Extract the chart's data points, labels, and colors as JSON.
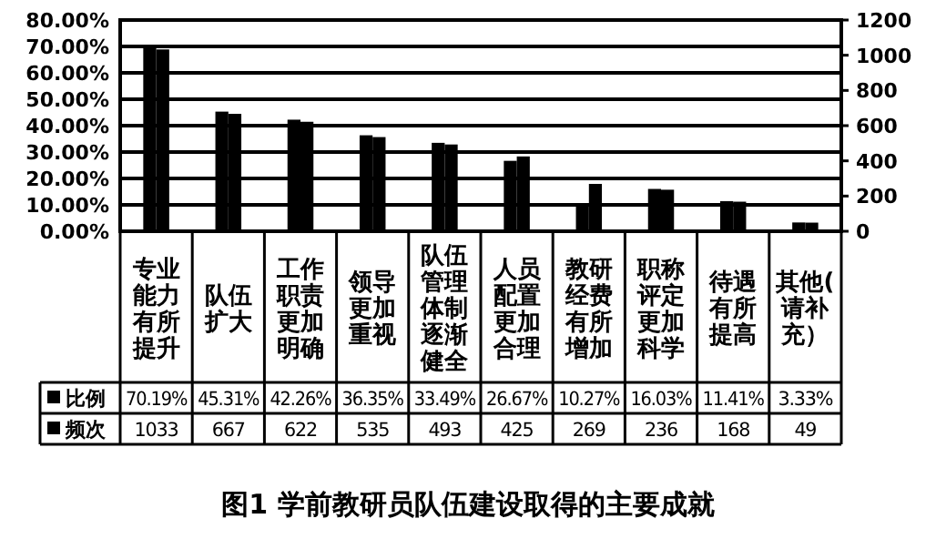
{
  "chart_data": {
    "type": "bar",
    "title": "图1 学前教研员队伍建设取得的主要成就",
    "categories": [
      "专业能力有所提升",
      "队伍扩大",
      "工作职责更加明确",
      "领导更加重视",
      "队伍管理体制逐渐健全",
      "人员配置更加合理",
      "教研经费有所增加",
      "职称评定更加科学",
      "待遇有所提高",
      "其他(请补充）"
    ],
    "series": [
      {
        "name": "比例",
        "color": "#000000",
        "axis": "y",
        "values": [
          70.19,
          45.31,
          42.26,
          36.35,
          33.49,
          26.67,
          10.27,
          16.03,
          11.41,
          3.33
        ],
        "value_labels": [
          "70.19%",
          "45.31%",
          "42.26%",
          "36.35%",
          "33.49%",
          "26.67%",
          "10.27%",
          "16.03%",
          "11.41%",
          "3.33%"
        ]
      },
      {
        "name": "频次",
        "color": "#000000",
        "axis": "y2",
        "values": [
          1033,
          667,
          622,
          535,
          493,
          425,
          269,
          236,
          168,
          49
        ],
        "value_labels": [
          "1033",
          "667",
          "622",
          "535",
          "493",
          "425",
          "269",
          "236",
          "168",
          "49"
        ]
      }
    ],
    "ylim": [
      0,
      80
    ],
    "yticks": [
      {
        "value": 0,
        "label": "0.00%"
      },
      {
        "value": 10,
        "label": "10.00%"
      },
      {
        "value": 20,
        "label": "20.00%"
      },
      {
        "value": 30,
        "label": "30.00%"
      },
      {
        "value": 40,
        "label": "40.00%"
      },
      {
        "value": 50,
        "label": "50.00%"
      },
      {
        "value": 60,
        "label": "60.00%"
      },
      {
        "value": 70,
        "label": "70.00%"
      },
      {
        "value": 80,
        "label": "80.00%"
      }
    ],
    "y2lim": [
      0,
      1200
    ],
    "y2ticks": [
      0,
      200,
      400,
      600,
      800,
      1000,
      1200
    ],
    "grid": "y",
    "legend": "bottom"
  }
}
